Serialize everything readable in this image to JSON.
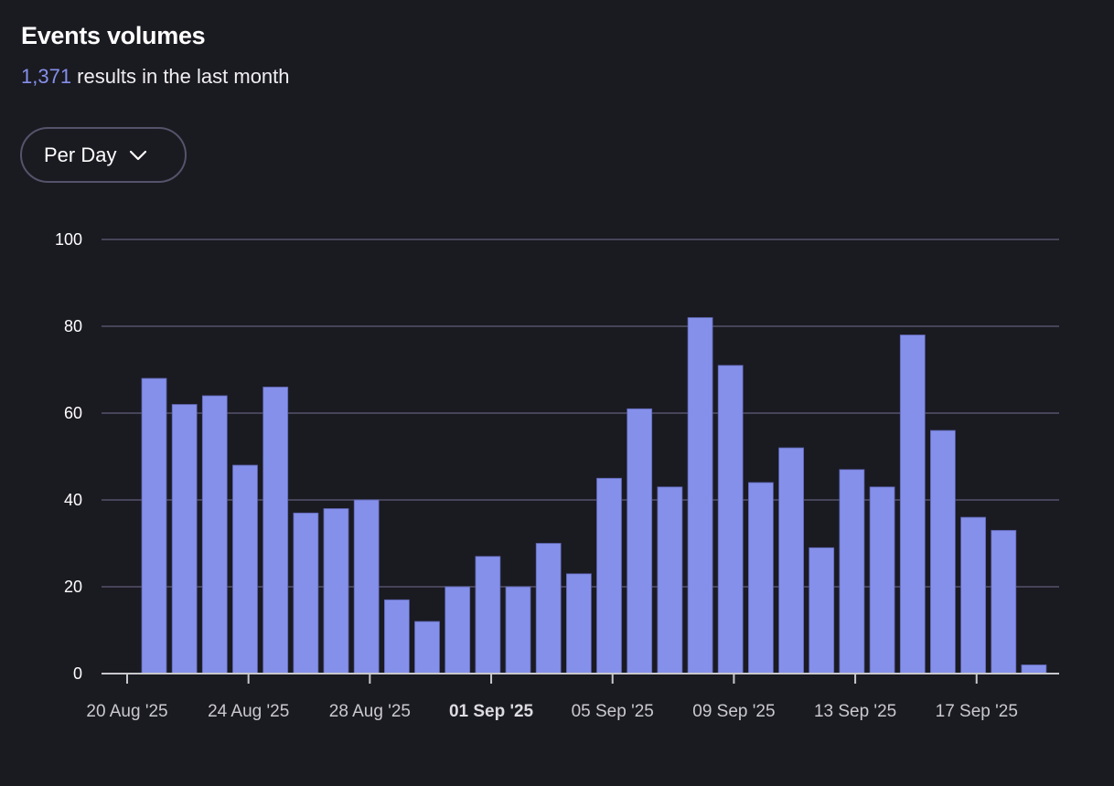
{
  "header": {
    "title": "Events volumes",
    "result_count": "1,371",
    "result_suffix": " results in the last month"
  },
  "dropdown": {
    "selected": "Per Day",
    "icon": "chevron-down-icon"
  },
  "colors": {
    "background": "#1a1a21",
    "bar": "#8590ea",
    "accent": "#8590ea",
    "gridline": "#55536a",
    "axis": "#c8c8cc"
  },
  "chart_data": {
    "type": "bar",
    "title": "Events volumes",
    "xlabel": "",
    "ylabel": "",
    "ylim": [
      0,
      100
    ],
    "yticks": [
      0,
      20,
      40,
      60,
      80,
      100
    ],
    "grid": true,
    "categories": [
      "21 Aug '25",
      "22 Aug '25",
      "23 Aug '25",
      "24 Aug '25",
      "25 Aug '25",
      "26 Aug '25",
      "27 Aug '25",
      "28 Aug '25",
      "29 Aug '25",
      "30 Aug '25",
      "31 Aug '25",
      "01 Sep '25",
      "02 Sep '25",
      "03 Sep '25",
      "04 Sep '25",
      "05 Sep '25",
      "06 Sep '25",
      "07 Sep '25",
      "08 Sep '25",
      "09 Sep '25",
      "10 Sep '25",
      "11 Sep '25",
      "12 Sep '25",
      "13 Sep '25",
      "14 Sep '25",
      "15 Sep '25",
      "16 Sep '25",
      "17 Sep '25",
      "18 Sep '25",
      "19 Sep '25"
    ],
    "values": [
      68,
      62,
      64,
      48,
      66,
      37,
      38,
      40,
      17,
      12,
      20,
      27,
      20,
      30,
      23,
      45,
      61,
      43,
      82,
      71,
      44,
      52,
      29,
      47,
      43,
      78,
      56,
      36,
      33,
      2
    ],
    "xtick_labels": [
      {
        "label": "20 Aug '25",
        "day_offset": 0,
        "bold": false
      },
      {
        "label": "24 Aug '25",
        "day_offset": 4,
        "bold": false
      },
      {
        "label": "28 Aug '25",
        "day_offset": 8,
        "bold": false
      },
      {
        "label": "01 Sep '25",
        "day_offset": 12,
        "bold": true
      },
      {
        "label": "05 Sep '25",
        "day_offset": 16,
        "bold": false
      },
      {
        "label": "09 Sep '25",
        "day_offset": 20,
        "bold": false
      },
      {
        "label": "13 Sep '25",
        "day_offset": 24,
        "bold": false
      },
      {
        "label": "17 Sep '25",
        "day_offset": 28,
        "bold": false
      }
    ]
  }
}
